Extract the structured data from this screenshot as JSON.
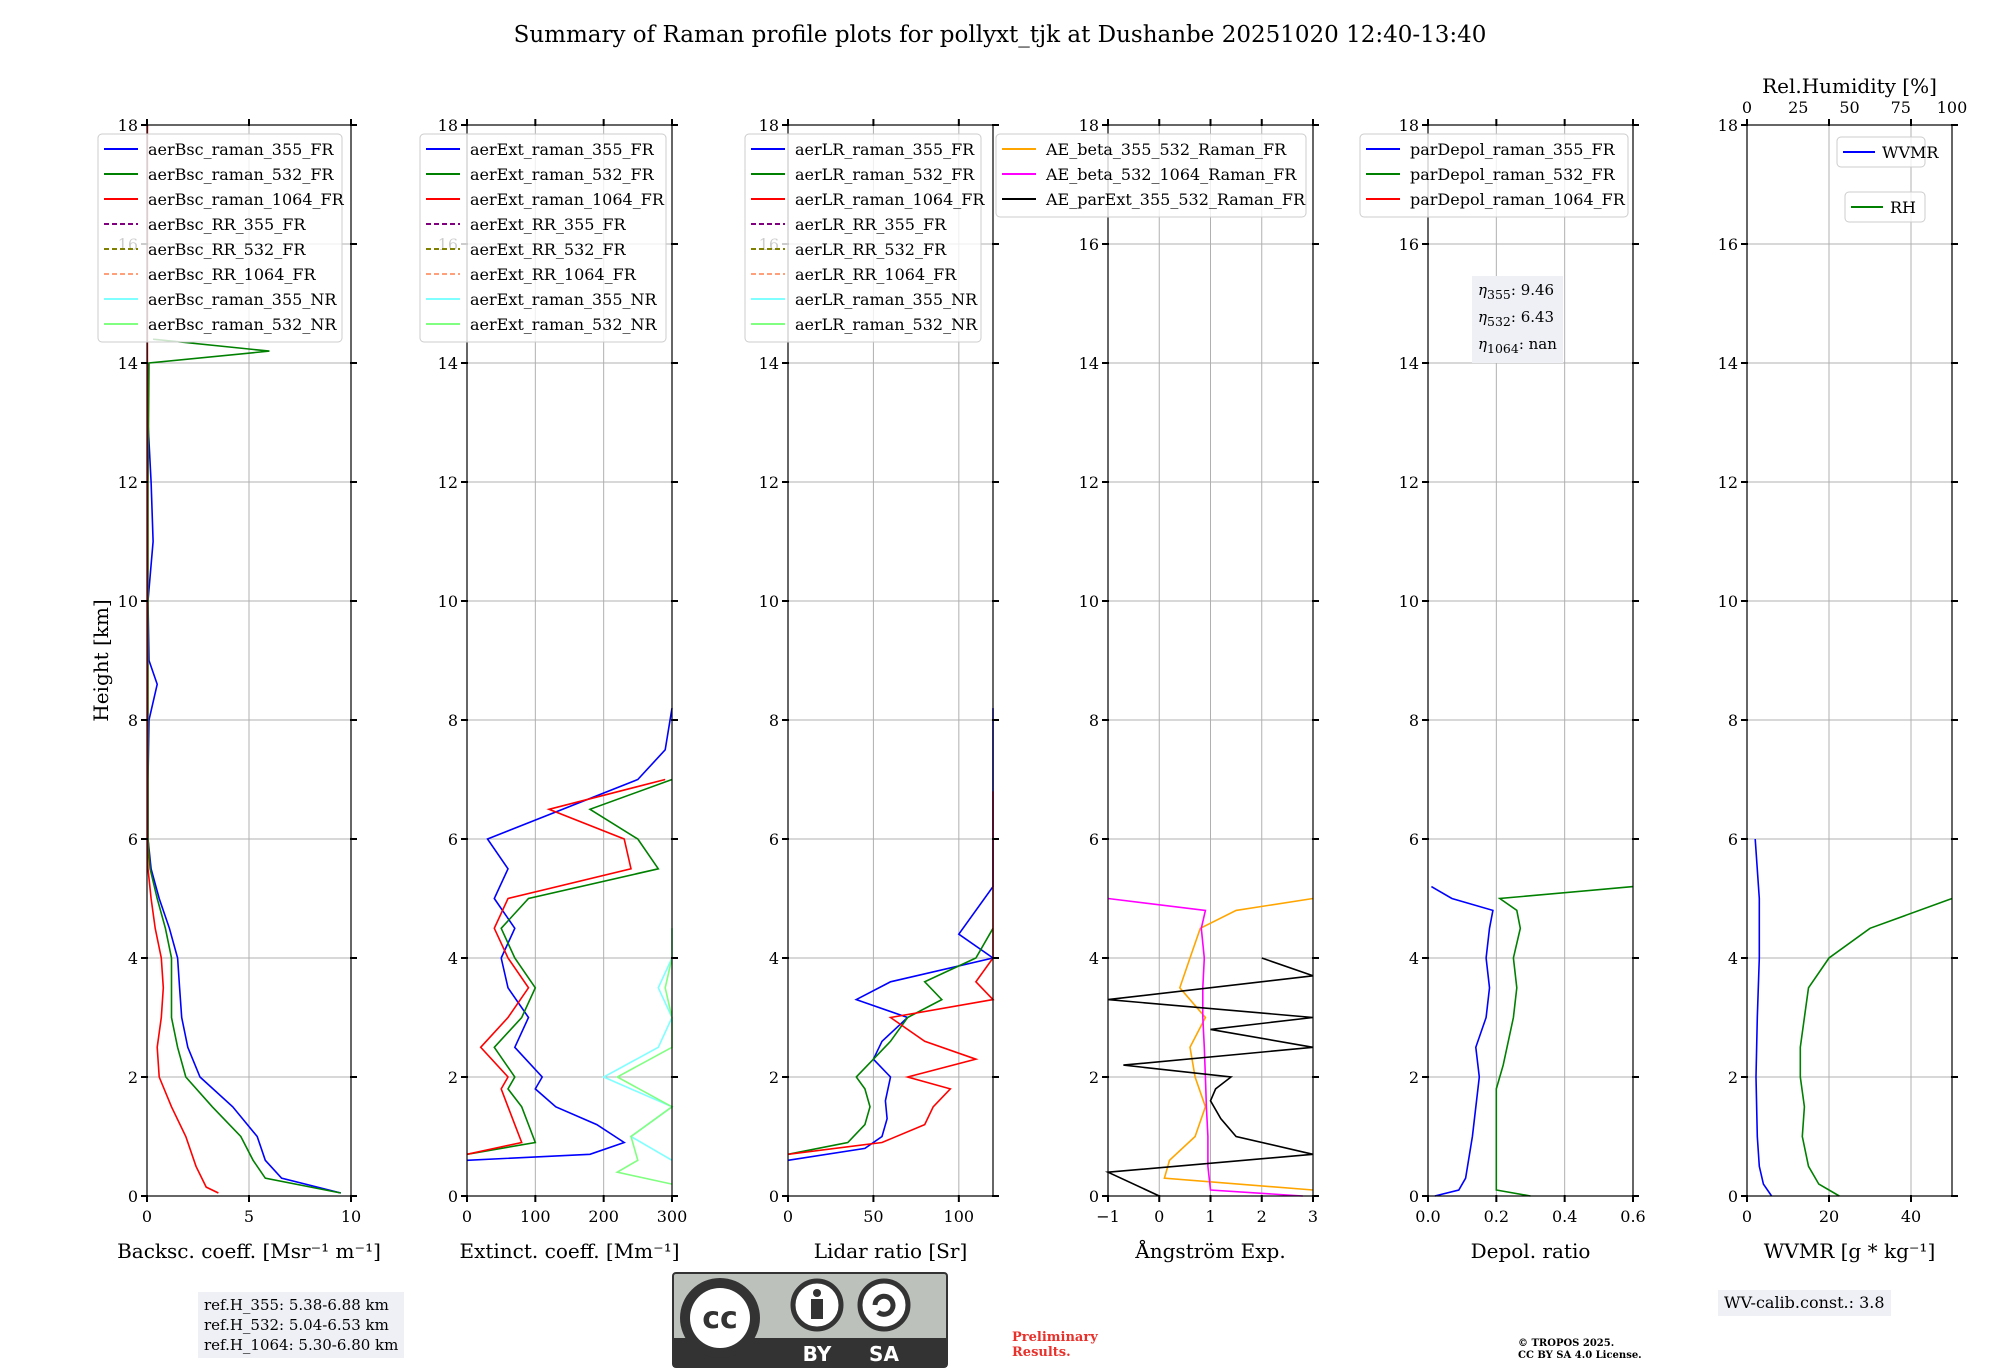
{
  "title": "Summary of Raman profile plots for pollyxt_tjk at Dushanbe 20251020 12:40-13:40",
  "chart_data": [
    {
      "type": "line",
      "name": "backscatter",
      "xlabel": "Backsc. coeff. [Msr⁻¹ m⁻¹]",
      "ylabel": "Height [km]",
      "xlim": [
        0,
        10
      ],
      "ylim": [
        0,
        18
      ],
      "xticks": [
        0,
        5,
        10
      ],
      "yticks": [
        0,
        2,
        4,
        6,
        8,
        10,
        12,
        14,
        16,
        18
      ],
      "grid": true,
      "legend_position": "top-left",
      "legend": [
        "aerBsc_raman_355_FR",
        "aerBsc_raman_532_FR",
        "aerBsc_raman_1064_FR",
        "aerBsc_RR_355_FR",
        "aerBsc_RR_532_FR",
        "aerBsc_RR_1064_FR",
        "aerBsc_raman_355_NR",
        "aerBsc_raman_532_NR"
      ],
      "series": [
        {
          "name": "aerBsc_raman_355_FR",
          "color": "#0000ff",
          "y": [
            0.05,
            0.3,
            0.6,
            1.0,
            1.5,
            2.0,
            2.5,
            3.0,
            3.5,
            4.0,
            4.5,
            5.0,
            5.5,
            6.0,
            7.0,
            8.0,
            8.6,
            9.0,
            10.0,
            11.0,
            12.0,
            13.0,
            14.0
          ],
          "x": [
            9.5,
            6.6,
            5.8,
            5.4,
            4.2,
            2.6,
            2.0,
            1.7,
            1.6,
            1.5,
            1.1,
            0.6,
            0.2,
            0.05,
            0.05,
            0.1,
            0.5,
            0.1,
            0.05,
            0.3,
            0.2,
            0.05,
            0.05
          ]
        },
        {
          "name": "aerBsc_raman_532_FR",
          "color": "#008000",
          "y": [
            0.05,
            0.3,
            0.6,
            1.0,
            1.5,
            2.0,
            2.5,
            3.0,
            3.5,
            4.0,
            4.5,
            5.0,
            5.5,
            6.0,
            8.0,
            10.0,
            12.0,
            14.0,
            14.2,
            14.4
          ],
          "x": [
            9.5,
            5.8,
            5.2,
            4.6,
            3.2,
            1.9,
            1.5,
            1.2,
            1.2,
            1.2,
            0.9,
            0.5,
            0.15,
            0.05,
            0.05,
            0.05,
            0.05,
            0.1,
            6.0,
            0.3
          ]
        },
        {
          "name": "aerBsc_raman_1064_FR",
          "color": "#ff0000",
          "y": [
            0.05,
            0.15,
            0.5,
            1.0,
            1.5,
            2.0,
            2.5,
            3.0,
            3.5,
            4.0,
            4.5,
            5.0,
            5.5,
            6.0,
            14.0,
            18.0
          ],
          "x": [
            3.5,
            2.9,
            2.4,
            1.9,
            1.2,
            0.6,
            0.5,
            0.7,
            0.8,
            0.7,
            0.4,
            0.2,
            0.05,
            0.02,
            0.02,
            0.02
          ]
        }
      ]
    },
    {
      "type": "line",
      "name": "extinction",
      "xlabel": "Extinct. coeff. [Mm⁻¹]",
      "xlim": [
        0,
        300
      ],
      "ylim": [
        0,
        18
      ],
      "xticks": [
        0,
        100,
        200,
        300
      ],
      "yticks": [
        0,
        2,
        4,
        6,
        8,
        10,
        12,
        14,
        16,
        18
      ],
      "grid": true,
      "legend_position": "top-left",
      "legend": [
        "aerExt_raman_355_FR",
        "aerExt_raman_532_FR",
        "aerExt_raman_1064_FR",
        "aerExt_RR_355_FR",
        "aerExt_RR_532_FR",
        "aerExt_RR_1064_FR",
        "aerExt_raman_355_NR",
        "aerExt_raman_532_NR"
      ],
      "series": [
        {
          "name": "aerExt_raman_355_FR",
          "color": "#0000ff",
          "y": [
            0.6,
            0.7,
            0.9,
            1.2,
            1.5,
            1.8,
            2.0,
            2.5,
            3.0,
            3.5,
            4.0,
            4.5,
            5.0,
            5.5,
            6.0,
            7.0,
            7.5,
            8.2
          ],
          "x": [
            0,
            180,
            230,
            190,
            130,
            100,
            110,
            70,
            90,
            60,
            50,
            70,
            40,
            60,
            30,
            250,
            290,
            300
          ]
        },
        {
          "name": "aerExt_raman_532_FR",
          "color": "#008000",
          "y": [
            0.7,
            0.9,
            1.2,
            1.5,
            1.8,
            2.0,
            2.5,
            3.0,
            3.5,
            4.0,
            4.5,
            5.0,
            5.5,
            6.0,
            6.5,
            7.0
          ],
          "x": [
            0,
            100,
            90,
            80,
            60,
            70,
            40,
            80,
            100,
            70,
            50,
            90,
            280,
            250,
            180,
            300
          ]
        },
        {
          "name": "aerExt_raman_1064_FR",
          "color": "#ff0000",
          "y": [
            0.7,
            0.9,
            1.2,
            1.5,
            1.8,
            2.0,
            2.5,
            3.0,
            3.5,
            4.0,
            4.5,
            5.0,
            5.5,
            6.0,
            6.5,
            7.0
          ],
          "x": [
            0,
            80,
            70,
            60,
            50,
            60,
            20,
            60,
            90,
            60,
            40,
            60,
            240,
            230,
            120,
            290
          ]
        },
        {
          "name": "aerExt_raman_355_NR",
          "color": "#7fffff",
          "y": [
            0.6,
            1.0,
            1.5,
            2.0,
            2.5,
            3.0,
            3.5,
            4.0,
            4.5
          ],
          "x": [
            300,
            240,
            300,
            200,
            280,
            300,
            280,
            300,
            300
          ]
        },
        {
          "name": "aerExt_raman_532_NR",
          "color": "#80ff80",
          "y": [
            0.2,
            0.4,
            0.6,
            1.0,
            1.5,
            2.0,
            2.5,
            3.0,
            3.5,
            4.0,
            4.5
          ],
          "x": [
            300,
            220,
            250,
            240,
            300,
            220,
            300,
            300,
            290,
            300,
            300
          ]
        }
      ]
    },
    {
      "type": "line",
      "name": "lidar-ratio",
      "xlabel": "Lidar ratio [Sr]",
      "xlim": [
        0,
        120
      ],
      "ylim": [
        0,
        18
      ],
      "xticks": [
        0,
        50,
        100
      ],
      "yticks": [
        0,
        2,
        4,
        6,
        8,
        10,
        12,
        14,
        16,
        18
      ],
      "grid": true,
      "legend_position": "top-left",
      "legend": [
        "aerLR_raman_355_FR",
        "aerLR_raman_532_FR",
        "aerLR_raman_1064_FR",
        "aerLR_RR_355_FR",
        "aerLR_RR_532_FR",
        "aerLR_RR_1064_FR",
        "aerLR_raman_355_NR",
        "aerLR_raman_532_NR"
      ],
      "series": [
        {
          "name": "aerLR_raman_355_FR",
          "color": "#0000ff",
          "y": [
            0.6,
            0.8,
            1.0,
            1.3,
            1.6,
            2.0,
            2.3,
            2.6,
            3.0,
            3.3,
            3.6,
            4.0,
            4.4,
            5.2,
            5.5,
            6.0,
            7.0,
            7.4,
            7.6,
            8.2
          ],
          "x": [
            0,
            45,
            55,
            58,
            57,
            60,
            50,
            55,
            70,
            40,
            60,
            120,
            100,
            120,
            120,
            120,
            120,
            120,
            120,
            120
          ]
        },
        {
          "name": "aerLR_raman_532_FR",
          "color": "#008000",
          "y": [
            0.7,
            0.9,
            1.2,
            1.5,
            1.8,
            2.0,
            2.3,
            2.6,
            3.0,
            3.3,
            3.6,
            4.0,
            4.5
          ],
          "x": [
            0,
            35,
            45,
            48,
            45,
            40,
            50,
            60,
            70,
            90,
            80,
            110,
            120
          ]
        },
        {
          "name": "aerLR_raman_1064_FR",
          "color": "#ff0000",
          "y": [
            0.7,
            0.9,
            1.2,
            1.5,
            1.8,
            2.0,
            2.3,
            2.6,
            3.0,
            3.3,
            3.6,
            4.0,
            4.4,
            5.0,
            6.0,
            6.8
          ],
          "x": [
            0,
            55,
            80,
            85,
            95,
            70,
            110,
            80,
            60,
            120,
            110,
            120,
            120,
            120,
            120,
            120
          ]
        }
      ]
    },
    {
      "type": "line",
      "name": "angstrom",
      "xlabel": "Ångström Exp.",
      "xlim": [
        -1,
        3
      ],
      "ylim": [
        0,
        18
      ],
      "xticks": [
        -1,
        0,
        1,
        2,
        3
      ],
      "yticks": [
        0,
        2,
        4,
        6,
        8,
        10,
        12,
        14,
        16,
        18
      ],
      "grid": true,
      "legend_position": "top-right",
      "legend": [
        "AE_beta_355_532_Raman_FR",
        "AE_beta_532_1064_Raman_FR",
        "AE_parExt_355_532_Raman_FR"
      ],
      "series": [
        {
          "name": "AE_beta_355_532_Raman_FR",
          "color": "#ffa500",
          "y": [
            0.1,
            0.3,
            0.6,
            1.0,
            1.5,
            2.0,
            2.5,
            3.0,
            3.5,
            4.0,
            4.5,
            4.8,
            5.0
          ],
          "x": [
            3,
            0.1,
            0.2,
            0.7,
            0.9,
            0.7,
            0.6,
            0.9,
            0.4,
            0.6,
            0.8,
            1.5,
            3
          ]
        },
        {
          "name": "AE_beta_532_1064_Raman_FR",
          "color": "#ff00ff",
          "y": [
            0.0,
            0.1,
            0.5,
            1.0,
            1.5,
            2.0,
            2.5,
            3.0,
            3.5,
            4.0,
            4.5,
            4.8,
            5.0
          ],
          "x": [
            2.8,
            1.0,
            0.95,
            0.95,
            0.92,
            0.9,
            0.88,
            0.85,
            0.85,
            0.88,
            0.82,
            0.9,
            -1
          ]
        },
        {
          "name": "AE_parExt_355_532_Raman_FR",
          "color": "#000000",
          "y": [
            0.0,
            0.4,
            0.7,
            1.0,
            1.3,
            1.6,
            1.8,
            2.0,
            2.2,
            2.5,
            2.8,
            3.0,
            3.3,
            3.7,
            4.0
          ],
          "x": [
            0,
            -1,
            3,
            1.5,
            1.2,
            1.0,
            1.1,
            1.4,
            -0.7,
            3,
            1,
            3,
            -1,
            3,
            2
          ]
        }
      ]
    },
    {
      "type": "line",
      "name": "depolarization",
      "xlabel": "Depol. ratio",
      "xlim": [
        0.0,
        0.6
      ],
      "ylim": [
        0,
        18
      ],
      "xticks": [
        0.0,
        0.2,
        0.4,
        0.6
      ],
      "xticklabels": [
        "0.0",
        "0.2",
        "0.4",
        "0.6"
      ],
      "yticks": [
        0,
        2,
        4,
        6,
        8,
        10,
        12,
        14,
        16,
        18
      ],
      "grid": true,
      "legend_position": "top-left",
      "legend": [
        "parDepol_raman_355_FR",
        "parDepol_raman_532_FR",
        "parDepol_raman_1064_FR"
      ],
      "series": [
        {
          "name": "parDepol_raman_355_FR",
          "color": "#0000ff",
          "y": [
            0.0,
            0.1,
            0.3,
            1.0,
            2.0,
            2.5,
            3.0,
            3.5,
            4.0,
            4.5,
            4.8,
            5.0,
            5.2
          ],
          "x": [
            0.02,
            0.09,
            0.11,
            0.13,
            0.15,
            0.14,
            0.17,
            0.18,
            0.17,
            0.18,
            0.19,
            0.07,
            0.01
          ]
        },
        {
          "name": "parDepol_raman_532_FR",
          "color": "#008000",
          "y": [
            0.0,
            0.1,
            0.3,
            1.0,
            1.8,
            2.2,
            3.0,
            3.5,
            4.0,
            4.5,
            4.8,
            5.0,
            5.2
          ],
          "x": [
            0.3,
            0.2,
            0.2,
            0.2,
            0.2,
            0.22,
            0.25,
            0.26,
            0.25,
            0.27,
            0.26,
            0.21,
            0.6
          ]
        }
      ]
    },
    {
      "type": "line",
      "name": "water-vapor",
      "xlabel": "WVMR [g * kg⁻¹]",
      "top_xlabel": "Rel.Humidity [%]",
      "xlim": [
        0,
        50
      ],
      "top_xlim": [
        0,
        100
      ],
      "ylim": [
        0,
        18
      ],
      "xticks": [
        0,
        20,
        40
      ],
      "top_xticks": [
        0,
        25,
        50,
        75,
        100
      ],
      "yticks": [
        0,
        2,
        4,
        6,
        8,
        10,
        12,
        14,
        16,
        18
      ],
      "grid": true,
      "legend_position": "top-right",
      "legend": [
        "WVMR",
        "RH"
      ],
      "series": [
        {
          "name": "WVMR",
          "color": "#0000ff",
          "y": [
            0.0,
            0.2,
            0.5,
            1.0,
            2.0,
            3.0,
            4.0,
            5.0,
            6.0
          ],
          "x": [
            6,
            4,
            3,
            2.5,
            2.2,
            2.5,
            3,
            3,
            2
          ]
        },
        {
          "name": "RH",
          "color": "#008000",
          "axis": "top",
          "y": [
            0.0,
            0.2,
            0.5,
            1.0,
            1.5,
            2.0,
            2.5,
            3.0,
            3.5,
            4.0,
            4.5,
            5.0
          ],
          "x": [
            45,
            35,
            30,
            27,
            28,
            26,
            26,
            28,
            30,
            40,
            60,
            100
          ]
        }
      ]
    }
  ],
  "annotations": {
    "ref_heights": [
      "ref.H_355: 5.38-6.88 km",
      "ref.H_532: 5.04-6.53 km",
      "ref.H_1064: 5.30-6.80 km"
    ],
    "eta": [
      {
        "sub": "355",
        "value": "9.46"
      },
      {
        "sub": "532",
        "value": "6.43"
      },
      {
        "sub": "1064",
        "value": "nan"
      }
    ],
    "wv_calib": "WV-calib.const.: 3.8",
    "preliminary": [
      "Preliminary",
      "Results."
    ],
    "copyright": [
      "© TROPOS 2025.",
      "CC BY SA 4.0 License."
    ],
    "license_badge": {
      "cc": "cc",
      "by": "BY",
      "sa": "SA"
    }
  }
}
